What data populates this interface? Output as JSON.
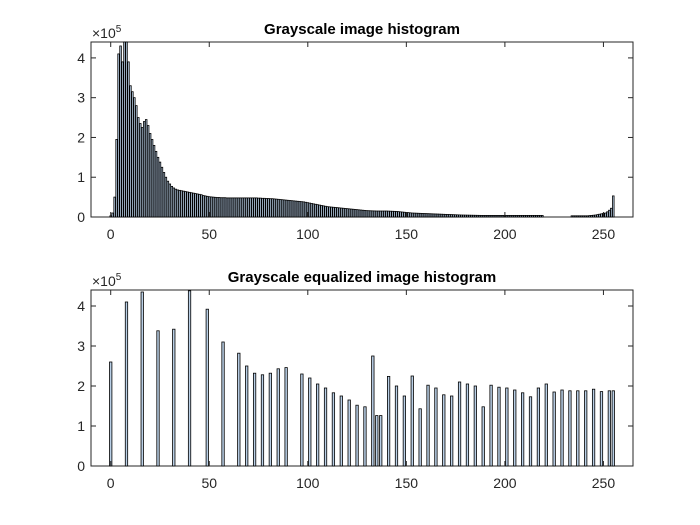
{
  "chart_data": [
    {
      "type": "bar",
      "title": "Grayscale image histogram",
      "xlabel": "",
      "ylabel": "",
      "xlim": [
        -10,
        265
      ],
      "ylim": [
        0,
        440000
      ],
      "x_ticks": [
        0,
        50,
        100,
        150,
        200,
        250
      ],
      "y_ticks": [
        0,
        100000,
        200000,
        300000,
        400000
      ],
      "y_tick_labels": [
        "0",
        "1",
        "2",
        "3",
        "4"
      ],
      "y_multiplier": {
        "base": "×10",
        "exponent": "5"
      },
      "bar_color": "#b9cfe6",
      "x": [
        0,
        1,
        2,
        3,
        4,
        5,
        6,
        7,
        8,
        9,
        10,
        11,
        12,
        13,
        14,
        15,
        16,
        17,
        18,
        19,
        20,
        21,
        22,
        23,
        24,
        25,
        26,
        27,
        28,
        29,
        30,
        31,
        32,
        33,
        34,
        35,
        36,
        37,
        38,
        39,
        40,
        41,
        42,
        43,
        44,
        45,
        46,
        47,
        48,
        49,
        50,
        51,
        52,
        53,
        54,
        55,
        56,
        57,
        58,
        59,
        60,
        61,
        62,
        63,
        64,
        65,
        66,
        67,
        68,
        69,
        70,
        71,
        72,
        73,
        74,
        75,
        76,
        77,
        78,
        79,
        80,
        81,
        82,
        83,
        84,
        85,
        86,
        87,
        88,
        89,
        90,
        91,
        92,
        93,
        94,
        95,
        96,
        97,
        98,
        99,
        100,
        101,
        102,
        103,
        104,
        105,
        106,
        107,
        108,
        109,
        110,
        111,
        112,
        113,
        114,
        115,
        116,
        117,
        118,
        119,
        120,
        121,
        122,
        123,
        124,
        125,
        126,
        127,
        128,
        129,
        130,
        131,
        132,
        133,
        134,
        135,
        136,
        137,
        138,
        139,
        140,
        141,
        142,
        143,
        144,
        145,
        146,
        147,
        148,
        149,
        150,
        151,
        152,
        153,
        154,
        155,
        156,
        157,
        158,
        159,
        160,
        161,
        162,
        163,
        164,
        165,
        166,
        167,
        168,
        169,
        170,
        171,
        172,
        173,
        174,
        175,
        176,
        177,
        178,
        179,
        180,
        181,
        182,
        183,
        184,
        185,
        186,
        187,
        188,
        189,
        190,
        191,
        192,
        193,
        194,
        195,
        196,
        197,
        198,
        199,
        200,
        201,
        202,
        203,
        204,
        205,
        206,
        207,
        208,
        209,
        210,
        211,
        212,
        213,
        214,
        215,
        216,
        217,
        218,
        219,
        220,
        221,
        222,
        223,
        224,
        225,
        226,
        227,
        228,
        229,
        230,
        231,
        232,
        233,
        234,
        235,
        236,
        237,
        238,
        239,
        240,
        241,
        242,
        243,
        244,
        245,
        246,
        247,
        248,
        249,
        250,
        251,
        252,
        253,
        254,
        255
      ],
      "values": [
        3000,
        10000,
        50000,
        195000,
        410000,
        430000,
        390000,
        440000,
        445000,
        390000,
        330000,
        315000,
        300000,
        280000,
        250000,
        235000,
        225000,
        240000,
        245000,
        230000,
        210000,
        195000,
        180000,
        165000,
        150000,
        138000,
        125000,
        112000,
        100000,
        90000,
        83000,
        77000,
        73000,
        70000,
        68000,
        67000,
        66000,
        65000,
        64000,
        63000,
        62000,
        61000,
        60000,
        59000,
        58000,
        57000,
        56000,
        54000,
        53000,
        52000,
        51000,
        50500,
        50000,
        49500,
        49000,
        49000,
        48500,
        48500,
        48500,
        48000,
        48000,
        48000,
        48000,
        48000,
        48000,
        48000,
        48000,
        48000,
        48000,
        48000,
        48000,
        48000,
        48000,
        48000,
        48000,
        47500,
        47500,
        47000,
        47000,
        46500,
        46500,
        46000,
        46000,
        45500,
        45000,
        44500,
        44000,
        43500,
        43000,
        42500,
        42000,
        41500,
        41000,
        40500,
        40000,
        39500,
        39000,
        38500,
        38000,
        37000,
        36000,
        35000,
        34000,
        33000,
        32000,
        31000,
        30000,
        29000,
        28000,
        27000,
        26000,
        25500,
        25000,
        24500,
        24000,
        23500,
        23000,
        22500,
        22000,
        21500,
        21000,
        20500,
        20000,
        19500,
        19000,
        18500,
        18000,
        17500,
        17000,
        16500,
        16000,
        15800,
        15600,
        15400,
        15200,
        15000,
        15000,
        15000,
        15000,
        15000,
        15000,
        14800,
        14600,
        14400,
        14200,
        14000,
        13500,
        13000,
        12500,
        12000,
        11500,
        11000,
        10500,
        10000,
        9800,
        9600,
        9400,
        9200,
        9000,
        8800,
        8600,
        8400,
        8200,
        8000,
        7800,
        7600,
        7400,
        7200,
        7000,
        6800,
        6600,
        6400,
        6200,
        6000,
        5800,
        5600,
        5400,
        5200,
        5000,
        4900,
        4800,
        4700,
        4600,
        4500,
        4400,
        4300,
        4200,
        4100,
        4000,
        4000,
        4000,
        4000,
        4000,
        4000,
        4000,
        4000,
        4000,
        4000,
        4000,
        4000,
        4000,
        4000,
        4000,
        4000,
        4000,
        4000,
        4000,
        4000,
        4000,
        4000,
        4000,
        4000,
        4000,
        4000,
        4000,
        4000,
        4000,
        4000,
        4000,
        4000,
        0,
        0,
        0,
        0,
        0,
        0,
        0,
        0,
        0,
        0,
        0,
        0,
        0,
        0,
        3000,
        3000,
        3000,
        3000,
        3000,
        3000,
        3000,
        3000,
        3000,
        3500,
        4000,
        4500,
        5000,
        6000,
        7000,
        8000,
        9000,
        10000,
        13000,
        17000,
        22000,
        53000
      ]
    },
    {
      "type": "bar",
      "title": "Grayscale equalized image histogram",
      "xlabel": "",
      "ylabel": "",
      "xlim": [
        -10,
        265
      ],
      "ylim": [
        0,
        440000
      ],
      "x_ticks": [
        0,
        50,
        100,
        150,
        200,
        250
      ],
      "y_ticks": [
        0,
        100000,
        200000,
        300000,
        400000
      ],
      "y_tick_labels": [
        "0",
        "1",
        "2",
        "3",
        "4"
      ],
      "y_multiplier": {
        "base": "×10",
        "exponent": "5"
      },
      "bar_color": "#b9cfe6",
      "x": [
        0,
        8,
        16,
        24,
        32,
        40,
        49,
        57,
        65,
        69,
        73,
        77,
        81,
        85,
        89,
        97,
        101,
        105,
        109,
        113,
        117,
        121,
        125,
        129,
        133,
        135,
        137,
        141,
        145,
        149,
        153,
        157,
        161,
        165,
        169,
        173,
        177,
        181,
        185,
        189,
        193,
        197,
        201,
        205,
        209,
        213,
        217,
        221,
        225,
        229,
        233,
        237,
        241,
        245,
        249,
        253,
        255
      ],
      "values": [
        260000,
        410000,
        435000,
        338000,
        342000,
        438000,
        392000,
        310000,
        282000,
        250000,
        232000,
        228000,
        232000,
        243000,
        246000,
        230000,
        220000,
        205000,
        195000,
        183000,
        175000,
        165000,
        152000,
        148000,
        275000,
        126000,
        126000,
        224000,
        200000,
        175000,
        225000,
        143000,
        202000,
        195000,
        178000,
        175000,
        210000,
        205000,
        200000,
        148000,
        202000,
        197000,
        195000,
        190000,
        183000,
        173000,
        195000,
        205000,
        185000,
        190000,
        188000,
        188000,
        188000,
        192000,
        186000,
        188000,
        188000
      ]
    }
  ]
}
